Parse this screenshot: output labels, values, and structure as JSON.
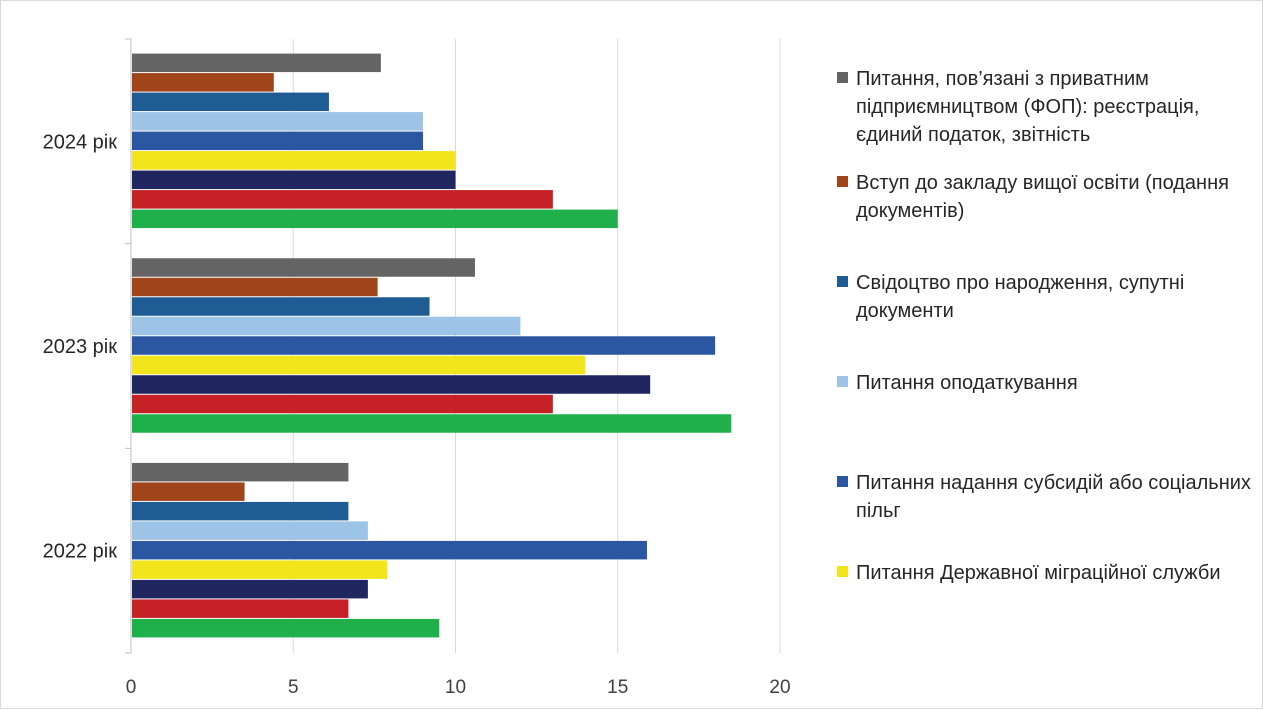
{
  "chart_data": {
    "type": "bar",
    "orientation": "horizontal",
    "categories": [
      "2022 рік",
      "2023 рік",
      "2024 рік"
    ],
    "xlim": [
      0,
      20
    ],
    "x_ticks": [
      "0",
      "5",
      "10",
      "15",
      "20"
    ],
    "grid": "vertical",
    "legend_position": "right",
    "series": [
      {
        "name": "",
        "color": "#1fb04c",
        "values": [
          9.5,
          18.5,
          15
        ]
      },
      {
        "name": "",
        "color": "#c62127",
        "values": [
          6.7,
          13,
          13
        ]
      },
      {
        "name": "",
        "color": "#1f2660",
        "values": [
          7.3,
          16,
          10
        ]
      },
      {
        "name": "Питання Державної міграційної служби",
        "color": "#f2e51b",
        "values": [
          7.9,
          14,
          10
        ]
      },
      {
        "name": "Питання надання субсидій або соціальних пільг",
        "color": "#2a56a2",
        "values": [
          15.9,
          18,
          9
        ]
      },
      {
        "name": "Питання оподаткування",
        "color": "#9dc3e6",
        "values": [
          7.3,
          12,
          9
        ]
      },
      {
        "name": "Свідоцтво про народження, супутні документи",
        "color": "#1f5c94",
        "values": [
          6.7,
          9.2,
          6.1
        ]
      },
      {
        "name": "Вступ до закладу вищої освіти (подання документів)",
        "color": "#a0441c",
        "values": [
          3.5,
          7.6,
          4.4
        ]
      },
      {
        "name": "Питання, пов’язані з приватним підприємництвом (ФОП): реєстрація, єдиний податок, звітність",
        "color": "#646464",
        "values": [
          6.7,
          10.6,
          7.7
        ]
      }
    ]
  },
  "legend_items": [
    {
      "label": "Питання, пов’язані з приватним підприємництвом (ФОП): реєстрація, єдиний податок, звітність",
      "color": "#646464"
    },
    {
      "label": "Вступ до закладу вищої освіти (подання документів)",
      "color": "#a0441c"
    },
    {
      "label": "Свідоцтво про народження, супутні документи",
      "color": "#1f5c94"
    },
    {
      "label": "Питання оподаткування",
      "color": "#9dc3e6"
    },
    {
      "label": "Питання надання субсидій або соціальних пільг",
      "color": "#2a56a2"
    },
    {
      "label": "Питання Державної міграційної служби",
      "color": "#f2e51b"
    }
  ]
}
